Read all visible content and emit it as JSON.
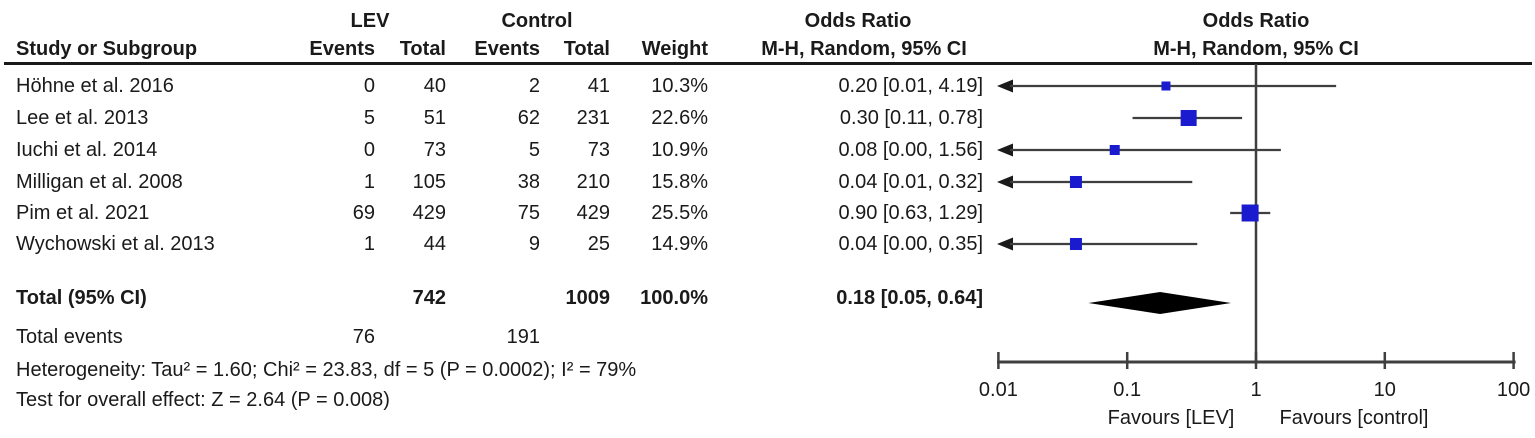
{
  "header": {
    "group_lev": "LEV",
    "group_control": "Control",
    "study": "Study or Subgroup",
    "events": "Events",
    "total": "Total",
    "weight": "Weight",
    "or_title": "Odds Ratio",
    "or_subtitle": "M-H, Random, 95% CI"
  },
  "chart_data": {
    "type": "forest",
    "effect_measure": "Odds Ratio, M-H, Random, 95% CI",
    "studies": [
      {
        "name": "Höhne et al. 2016",
        "lev_events": 0,
        "lev_total": 40,
        "ctrl_events": 2,
        "ctrl_total": 41,
        "weight": "10.3%",
        "weight_pct": 10.3,
        "or": 0.2,
        "ci_low": 0.01,
        "ci_high": 4.19,
        "or_label": "0.20 [0.01, 4.19]",
        "arrow_low": true
      },
      {
        "name": "Lee et al. 2013",
        "lev_events": 5,
        "lev_total": 51,
        "ctrl_events": 62,
        "ctrl_total": 231,
        "weight": "22.6%",
        "weight_pct": 22.6,
        "or": 0.3,
        "ci_low": 0.11,
        "ci_high": 0.78,
        "or_label": "0.30 [0.11, 0.78]",
        "arrow_low": false
      },
      {
        "name": "Iuchi et al. 2014",
        "lev_events": 0,
        "lev_total": 73,
        "ctrl_events": 5,
        "ctrl_total": 73,
        "weight": "10.9%",
        "weight_pct": 10.9,
        "or": 0.08,
        "ci_low": 0.0,
        "ci_high": 1.56,
        "or_label": "0.08 [0.00, 1.56]",
        "arrow_low": true
      },
      {
        "name": "Milligan et al. 2008",
        "lev_events": 1,
        "lev_total": 105,
        "ctrl_events": 38,
        "ctrl_total": 210,
        "weight": "15.8%",
        "weight_pct": 15.8,
        "or": 0.04,
        "ci_low": 0.01,
        "ci_high": 0.32,
        "or_label": "0.04 [0.01, 0.32]",
        "arrow_low": true
      },
      {
        "name": "Pim et al. 2021",
        "lev_events": 69,
        "lev_total": 429,
        "ctrl_events": 75,
        "ctrl_total": 429,
        "weight": "25.5%",
        "weight_pct": 25.5,
        "or": 0.9,
        "ci_low": 0.63,
        "ci_high": 1.29,
        "or_label": "0.90 [0.63, 1.29]",
        "arrow_low": false
      },
      {
        "name": "Wychowski et al. 2013",
        "lev_events": 1,
        "lev_total": 44,
        "ctrl_events": 9,
        "ctrl_total": 25,
        "weight": "14.9%",
        "weight_pct": 14.9,
        "or": 0.04,
        "ci_low": 0.0,
        "ci_high": 0.35,
        "or_label": "0.04 [0.00, 0.35]",
        "arrow_low": true
      }
    ],
    "total": {
      "label": "Total (95% CI)",
      "lev_total": 742,
      "ctrl_total": 1009,
      "weight": "100.0%",
      "or": 0.18,
      "ci_low": 0.05,
      "ci_high": 0.64,
      "or_label": "0.18 [0.05, 0.64]"
    },
    "total_events": {
      "label": "Total events",
      "lev": 76,
      "ctrl": 191
    },
    "heterogeneity": "Heterogeneity: Tau² = 1.60; Chi² = 23.83, df = 5 (P = 0.0002); I² = 79%",
    "overall_effect": "Test for overall effect: Z = 2.64 (P = 0.008)",
    "axis": {
      "scale": "log",
      "min": 0.01,
      "max": 100,
      "ticks": [
        0.01,
        0.1,
        1,
        10,
        100
      ],
      "tick_labels": [
        "0.01",
        "0.1",
        "1",
        "10",
        "100"
      ],
      "favours_left": "Favours [LEV]",
      "favours_right": "Favours [control]"
    },
    "colors": {
      "square": "#1a1ace",
      "diamond": "#000000",
      "line": "#3f3f3f",
      "text": "#1a1a1a"
    }
  }
}
